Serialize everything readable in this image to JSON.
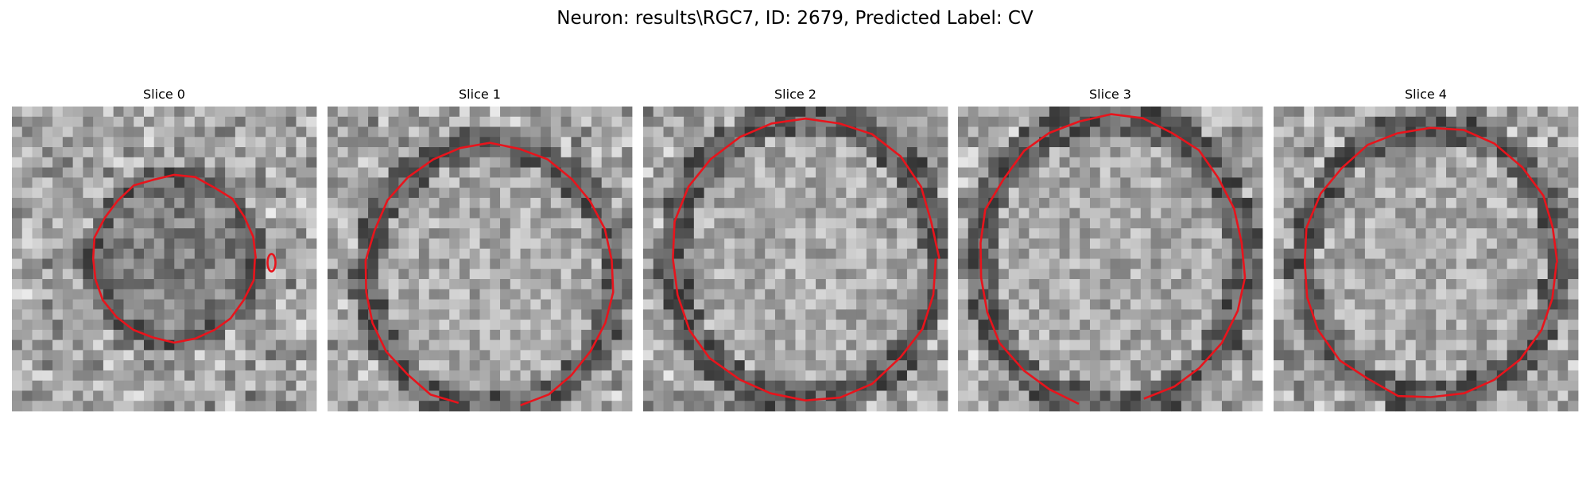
{
  "title": "Neuron: results\\RGC7, ID: 2679, Predicted Label: CV",
  "panels": [
    {
      "label": "Slice 0"
    },
    {
      "label": "Slice 1"
    },
    {
      "label": "Slice 2"
    },
    {
      "label": "Slice 3"
    },
    {
      "label": "Slice 4"
    }
  ]
}
